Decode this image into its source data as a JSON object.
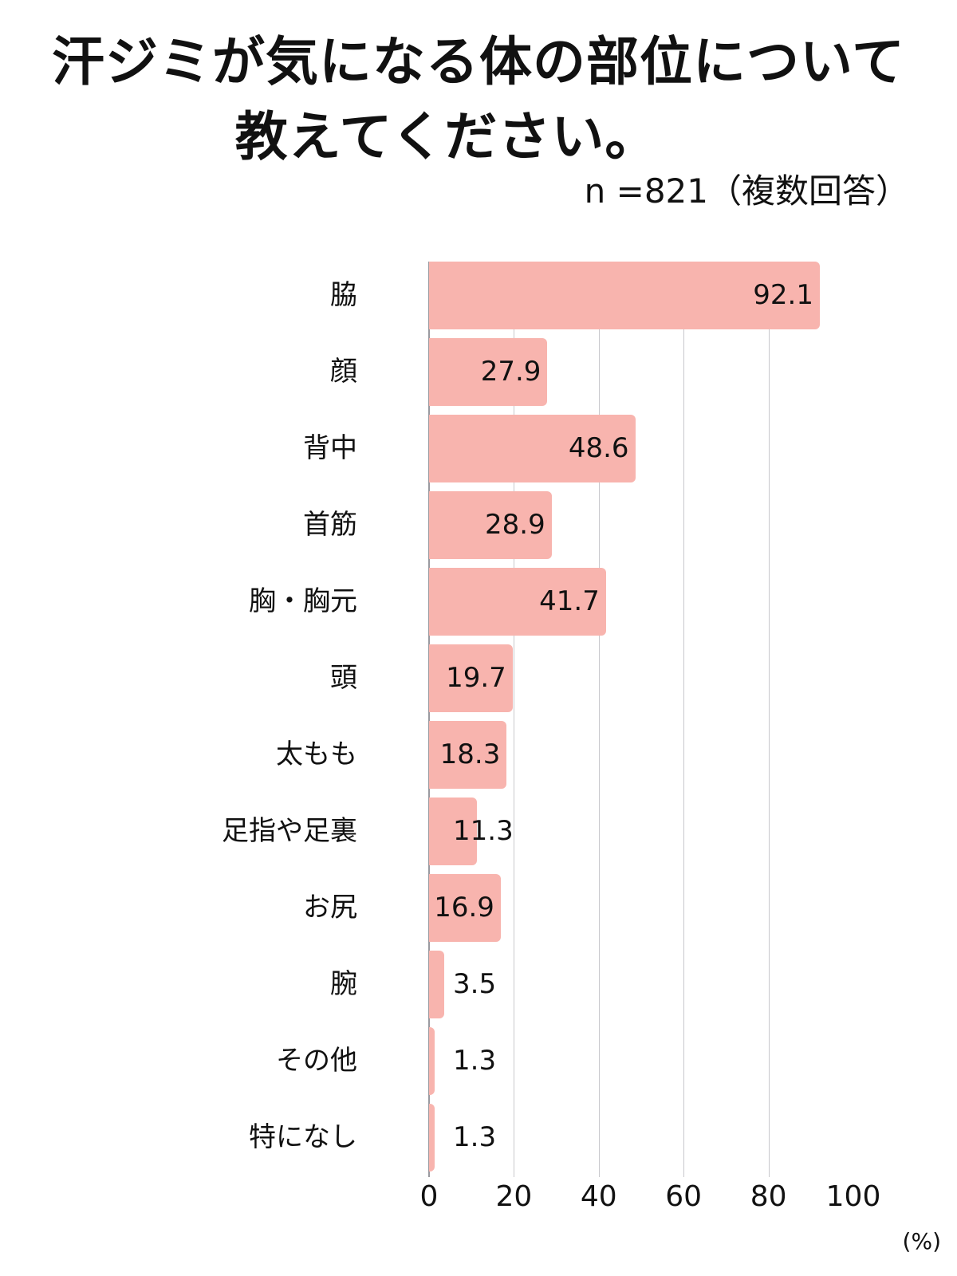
{
  "header": {
    "title_line1": "汗ジミが気になる体の部位について",
    "title_line2": "教えてください。",
    "sample": "n =821（複数回答）"
  },
  "colors": {
    "bar": "#F8B4AE",
    "grid": "#C8C8CC"
  },
  "chart_data": {
    "type": "bar",
    "orientation": "horizontal",
    "title": "汗ジミが気になる体の部位について教えてください。",
    "subtitle": "n =821（複数回答）",
    "categories": [
      "脇",
      "顔",
      "背中",
      "首筋",
      "胸・胸元",
      "頭",
      "太もも",
      "足指や足裏",
      "お尻",
      "腕",
      "その他",
      "特になし"
    ],
    "values": [
      92.1,
      27.9,
      48.6,
      28.9,
      41.7,
      19.7,
      18.3,
      11.3,
      16.9,
      3.5,
      1.3,
      1.3
    ],
    "value_labels": [
      "92.1",
      "27.9",
      "48.6",
      "28.9",
      "41.7",
      "19.7",
      "18.3",
      "11.3",
      "16.9",
      "3.5",
      "1.3",
      "1.3"
    ],
    "xlabel": "(%)",
    "ylabel": "",
    "xlim": [
      0,
      100
    ],
    "xticks": [
      "0",
      "20",
      "40",
      "60",
      "80",
      "100"
    ],
    "grid": true,
    "legend": null
  },
  "axis": {
    "unit": "(%)"
  }
}
